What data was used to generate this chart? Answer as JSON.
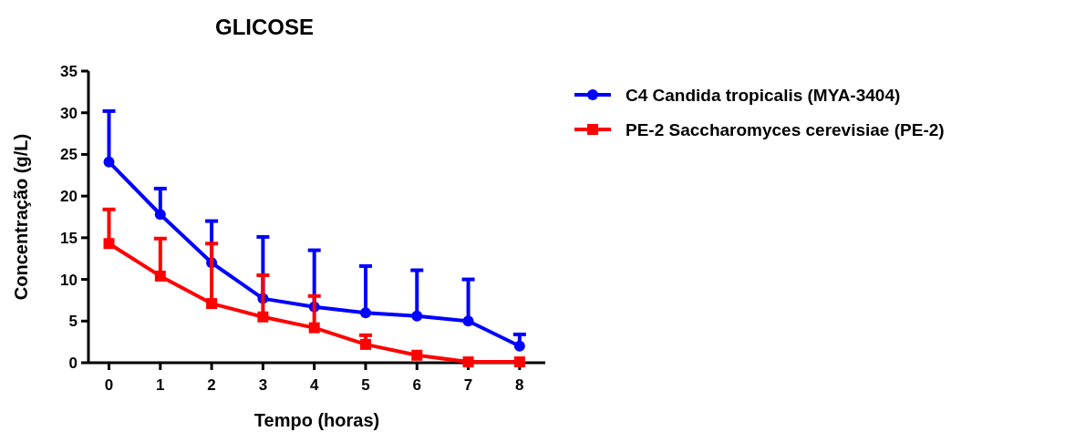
{
  "chart_data": {
    "type": "line",
    "title": "GLICOSE",
    "xlabel": "Tempo (horas)",
    "ylabel": "Concentração (g/L)",
    "x": [
      0,
      1,
      2,
      3,
      4,
      5,
      6,
      7,
      8
    ],
    "xlim": [
      -0.4,
      8.5
    ],
    "xticks": [
      0,
      1,
      2,
      3,
      4,
      5,
      6,
      7,
      8
    ],
    "ylim": [
      0,
      35
    ],
    "yticks": [
      0,
      5,
      10,
      15,
      20,
      25,
      30,
      35
    ],
    "grid": false,
    "legend": "right",
    "line_style": "solid",
    "series": [
      {
        "name": "C4 Candida tropicalis (MYA-3404)",
        "color": "#0000ff",
        "marker": "circle",
        "values": [
          24.1,
          17.8,
          12.0,
          7.7,
          6.7,
          6.0,
          5.6,
          5.0,
          2.0
        ],
        "errors": [
          [
            24.1,
            30.2
          ],
          [
            17.8,
            20.9
          ],
          [
            12.0,
            17.0
          ],
          [
            7.7,
            15.1
          ],
          [
            6.7,
            13.5
          ],
          [
            6.0,
            11.6
          ],
          [
            5.6,
            11.1
          ],
          [
            5.0,
            10.0
          ],
          [
            2.0,
            3.4
          ]
        ]
      },
      {
        "name": "PE-2 Saccharomyces cerevisiae (PE-2)",
        "color": "#ff0000",
        "marker": "square",
        "values": [
          14.3,
          10.4,
          7.1,
          5.5,
          4.2,
          2.2,
          0.9,
          0.1,
          0.1
        ],
        "errors": [
          [
            14.3,
            18.4
          ],
          [
            10.4,
            14.9
          ],
          [
            7.1,
            14.3
          ],
          [
            5.5,
            10.5
          ],
          [
            4.2,
            8.0
          ],
          [
            2.2,
            3.3
          ],
          null,
          null,
          null
        ]
      }
    ]
  }
}
